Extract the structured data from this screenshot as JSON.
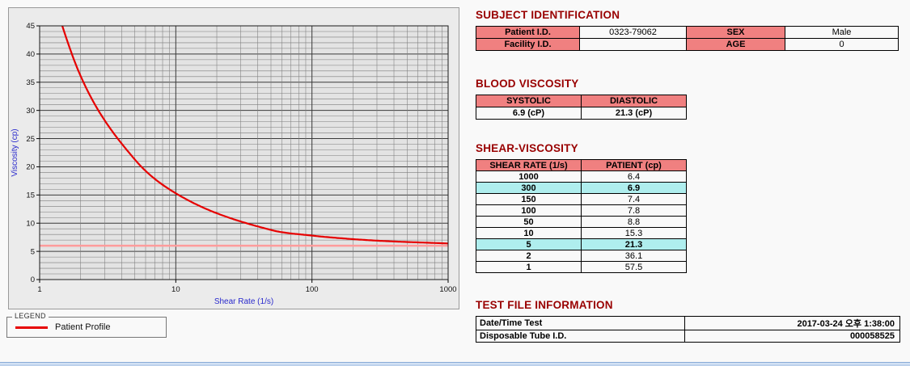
{
  "theme": {
    "page_bg": "#f9f9f9",
    "heading_red": "#990000",
    "table_header_pink": "#f08080",
    "highlight_cyan": "#afeeee",
    "curve_red": "#e60000",
    "reference_pink": "#ff9c9c",
    "bottom_strip_blue": "#b7cdea"
  },
  "headings": {
    "subject": "SUBJECT IDENTIFICATION",
    "blood": "BLOOD VISCOSITY",
    "shear": "SHEAR-VISCOSITY",
    "test_file": "TEST FILE INFORMATION"
  },
  "subject_table": {
    "rows": [
      {
        "label1": "Patient I.D.",
        "value1": "0323-79062",
        "label2": "SEX",
        "value2": "Male"
      },
      {
        "label1": "Facility I.D.",
        "value1": "",
        "label2": "AGE",
        "value2": "0"
      }
    ]
  },
  "blood_viscosity": {
    "headers": [
      "SYSTOLIC",
      "DIASTOLIC"
    ],
    "values": [
      "6.9 (cP)",
      "21.3 (cP)"
    ]
  },
  "shear_viscosity": {
    "headers": [
      "SHEAR RATE (1/s)",
      "PATIENT (cp)"
    ],
    "rows": [
      {
        "rate": "1000",
        "value": "6.4",
        "highlight": false
      },
      {
        "rate": "300",
        "value": "6.9",
        "highlight": true
      },
      {
        "rate": "150",
        "value": "7.4",
        "highlight": false
      },
      {
        "rate": "100",
        "value": "7.8",
        "highlight": false
      },
      {
        "rate": "50",
        "value": "8.8",
        "highlight": false
      },
      {
        "rate": "10",
        "value": "15.3",
        "highlight": false
      },
      {
        "rate": "5",
        "value": "21.3",
        "highlight": true
      },
      {
        "rate": "2",
        "value": "36.1",
        "highlight": false
      },
      {
        "rate": "1",
        "value": "57.5",
        "highlight": false
      }
    ]
  },
  "test_file": {
    "rows": [
      {
        "label": "Date/Time Test",
        "value": "2017-03-24 오후 1:38:00"
      },
      {
        "label": "Disposable Tube I.D.",
        "value": "000058525"
      }
    ]
  },
  "legend": {
    "title": "LEGEND",
    "series_label": "Patient Profile"
  },
  "chart_data": {
    "type": "line",
    "title": "",
    "xlabel": "Shear Rate (1/s)",
    "ylabel": "Viscosity (cp)",
    "x_scale": "log",
    "xlim": [
      1,
      1000
    ],
    "ylim": [
      0,
      45
    ],
    "x_ticks": [
      1,
      10,
      100,
      1000
    ],
    "y_ticks": [
      0,
      5,
      10,
      15,
      20,
      25,
      30,
      35,
      40,
      45
    ],
    "y_minor_step": 1,
    "grid": true,
    "legend_position": "outside-bottom-left",
    "series": [
      {
        "name": "Patient Profile",
        "color": "#e60000",
        "x": [
          1,
          2,
          5,
          10,
          50,
          100,
          150,
          300,
          1000
        ],
        "y": [
          57.5,
          36.1,
          21.3,
          15.3,
          8.8,
          7.8,
          7.4,
          6.9,
          6.4
        ]
      }
    ],
    "reference_line": {
      "y": 6.0,
      "color": "#ff9c9c"
    },
    "style": {
      "plot_bg": "#e3e3e3",
      "grid_minor": "#7d7d7d",
      "grid_major": "#3a3a3a",
      "frame": "#1a1a1a",
      "tick_label": "#111111",
      "axis_title": "#2929cc"
    }
  }
}
